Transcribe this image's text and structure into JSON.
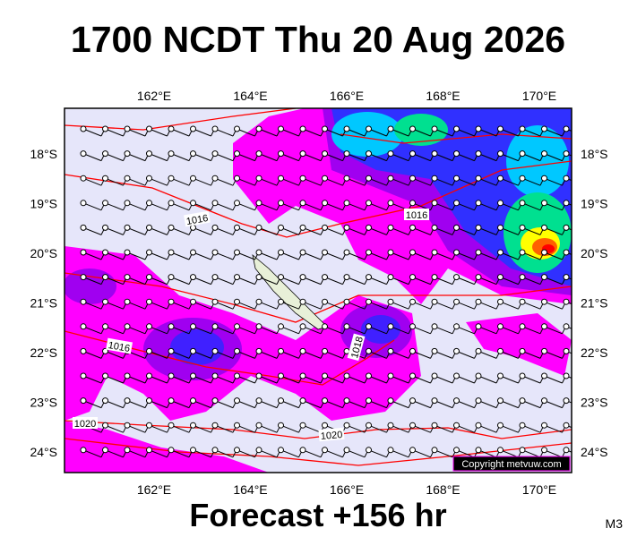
{
  "header": {
    "title": "1700 NCDT Thu 20 Aug 2026"
  },
  "map": {
    "longitude_labels": [
      "162°E",
      "164°E",
      "166°E",
      "168°E",
      "170°E"
    ],
    "latitude_labels": [
      "18°S",
      "19°S",
      "20°S",
      "21°S",
      "22°S",
      "23°S",
      "24°S"
    ],
    "isobar_labels": [
      "1016",
      "1016",
      "1016",
      "1018",
      "1020",
      "1020"
    ],
    "copyright": "Copyright metvuw.com"
  },
  "footer": {
    "forecast": "Forecast +156 hr",
    "model": "M3"
  }
}
